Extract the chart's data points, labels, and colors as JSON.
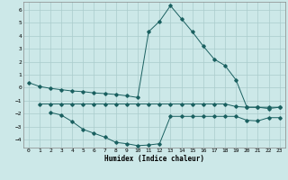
{
  "xlabel": "Humidex (Indice chaleur)",
  "bg_color": "#cce8e8",
  "grid_color": "#aacccc",
  "line_color": "#1a6060",
  "xlim": [
    -0.5,
    23.5
  ],
  "ylim": [
    -4.6,
    6.6
  ],
  "yticks": [
    -4,
    -3,
    -2,
    -1,
    0,
    1,
    2,
    3,
    4,
    5,
    6
  ],
  "xticks": [
    0,
    1,
    2,
    3,
    4,
    5,
    6,
    7,
    8,
    9,
    10,
    11,
    12,
    13,
    14,
    15,
    16,
    17,
    18,
    19,
    20,
    21,
    22,
    23
  ],
  "line1_x": [
    0,
    1,
    2,
    3,
    4,
    5,
    6,
    7,
    8,
    9,
    10,
    11,
    12,
    13,
    14,
    15,
    16,
    17,
    18,
    19,
    20,
    21,
    22,
    23
  ],
  "line1_y": [
    0.4,
    0.1,
    -0.05,
    -0.15,
    -0.25,
    -0.3,
    -0.4,
    -0.45,
    -0.52,
    -0.62,
    -0.75,
    4.3,
    5.1,
    6.3,
    5.3,
    4.3,
    3.2,
    2.2,
    1.7,
    0.6,
    -1.5,
    -1.5,
    -1.6,
    -1.5
  ],
  "line2_x": [
    1,
    2,
    3,
    4,
    5,
    6,
    7,
    8,
    9,
    10,
    11,
    12,
    13,
    14,
    15,
    16,
    17,
    18,
    19,
    20,
    21,
    22,
    23
  ],
  "line2_y": [
    -1.25,
    -1.25,
    -1.25,
    -1.25,
    -1.25,
    -1.25,
    -1.25,
    -1.25,
    -1.25,
    -1.25,
    -1.25,
    -1.25,
    -1.25,
    -1.25,
    -1.25,
    -1.25,
    -1.25,
    -1.25,
    -1.45,
    -1.5,
    -1.5,
    -1.5,
    -1.5
  ],
  "line3_x": [
    2,
    3,
    4,
    5,
    6,
    7,
    8,
    9,
    10,
    11,
    12,
    13,
    14,
    15,
    16,
    17,
    18,
    19,
    20,
    21,
    22,
    23
  ],
  "line3_y": [
    -1.9,
    -2.1,
    -2.6,
    -3.2,
    -3.5,
    -3.8,
    -4.2,
    -4.3,
    -4.45,
    -4.4,
    -4.3,
    -2.2,
    -2.2,
    -2.2,
    -2.2,
    -2.2,
    -2.2,
    -2.2,
    -2.5,
    -2.55,
    -2.3,
    -2.3
  ]
}
